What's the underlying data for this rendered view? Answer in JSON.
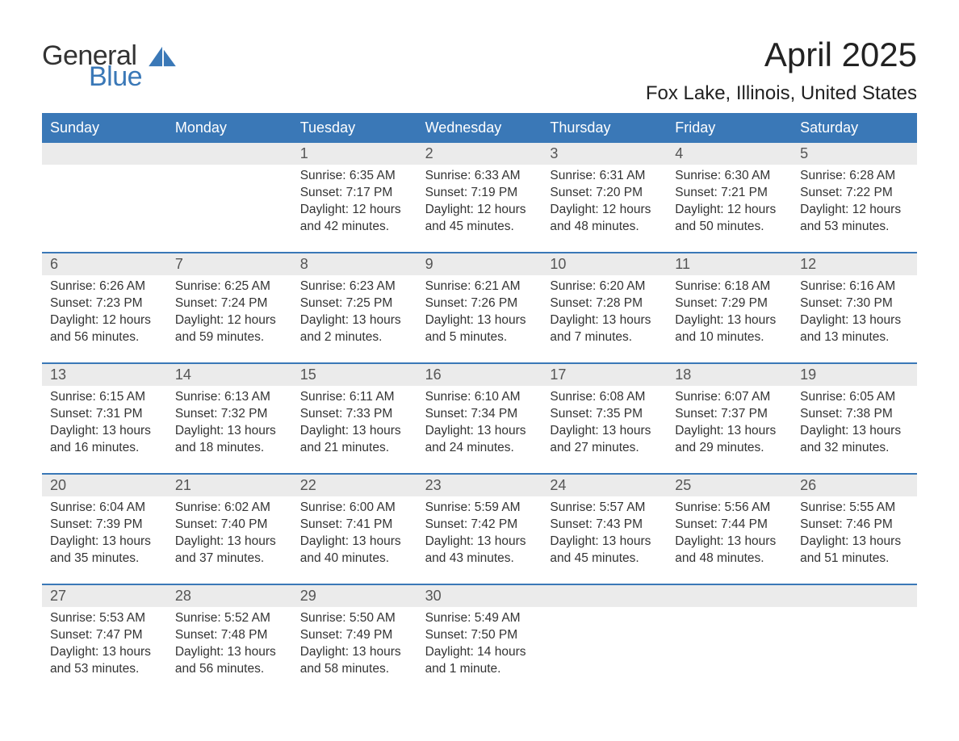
{
  "logo": {
    "general": "General",
    "blue": "Blue",
    "sail_color": "#3a78b7"
  },
  "title": "April 2025",
  "location": "Fox Lake, Illinois, United States",
  "colors": {
    "header_bg": "#3a78b7",
    "header_text": "#ffffff",
    "daynum_bg": "#ebebeb",
    "text": "#333333",
    "week_border": "#3a78b7",
    "background": "#ffffff"
  },
  "typography": {
    "title_fontsize": 42,
    "location_fontsize": 24,
    "dow_fontsize": 18,
    "daynum_fontsize": 18,
    "cell_fontsize": 15.5
  },
  "days_of_week": [
    "Sunday",
    "Monday",
    "Tuesday",
    "Wednesday",
    "Thursday",
    "Friday",
    "Saturday"
  ],
  "weeks": [
    [
      null,
      null,
      {
        "n": "1",
        "sunrise": "Sunrise: 6:35 AM",
        "sunset": "Sunset: 7:17 PM",
        "d1": "Daylight: 12 hours",
        "d2": "and 42 minutes."
      },
      {
        "n": "2",
        "sunrise": "Sunrise: 6:33 AM",
        "sunset": "Sunset: 7:19 PM",
        "d1": "Daylight: 12 hours",
        "d2": "and 45 minutes."
      },
      {
        "n": "3",
        "sunrise": "Sunrise: 6:31 AM",
        "sunset": "Sunset: 7:20 PM",
        "d1": "Daylight: 12 hours",
        "d2": "and 48 minutes."
      },
      {
        "n": "4",
        "sunrise": "Sunrise: 6:30 AM",
        "sunset": "Sunset: 7:21 PM",
        "d1": "Daylight: 12 hours",
        "d2": "and 50 minutes."
      },
      {
        "n": "5",
        "sunrise": "Sunrise: 6:28 AM",
        "sunset": "Sunset: 7:22 PM",
        "d1": "Daylight: 12 hours",
        "d2": "and 53 minutes."
      }
    ],
    [
      {
        "n": "6",
        "sunrise": "Sunrise: 6:26 AM",
        "sunset": "Sunset: 7:23 PM",
        "d1": "Daylight: 12 hours",
        "d2": "and 56 minutes."
      },
      {
        "n": "7",
        "sunrise": "Sunrise: 6:25 AM",
        "sunset": "Sunset: 7:24 PM",
        "d1": "Daylight: 12 hours",
        "d2": "and 59 minutes."
      },
      {
        "n": "8",
        "sunrise": "Sunrise: 6:23 AM",
        "sunset": "Sunset: 7:25 PM",
        "d1": "Daylight: 13 hours",
        "d2": "and 2 minutes."
      },
      {
        "n": "9",
        "sunrise": "Sunrise: 6:21 AM",
        "sunset": "Sunset: 7:26 PM",
        "d1": "Daylight: 13 hours",
        "d2": "and 5 minutes."
      },
      {
        "n": "10",
        "sunrise": "Sunrise: 6:20 AM",
        "sunset": "Sunset: 7:28 PM",
        "d1": "Daylight: 13 hours",
        "d2": "and 7 minutes."
      },
      {
        "n": "11",
        "sunrise": "Sunrise: 6:18 AM",
        "sunset": "Sunset: 7:29 PM",
        "d1": "Daylight: 13 hours",
        "d2": "and 10 minutes."
      },
      {
        "n": "12",
        "sunrise": "Sunrise: 6:16 AM",
        "sunset": "Sunset: 7:30 PM",
        "d1": "Daylight: 13 hours",
        "d2": "and 13 minutes."
      }
    ],
    [
      {
        "n": "13",
        "sunrise": "Sunrise: 6:15 AM",
        "sunset": "Sunset: 7:31 PM",
        "d1": "Daylight: 13 hours",
        "d2": "and 16 minutes."
      },
      {
        "n": "14",
        "sunrise": "Sunrise: 6:13 AM",
        "sunset": "Sunset: 7:32 PM",
        "d1": "Daylight: 13 hours",
        "d2": "and 18 minutes."
      },
      {
        "n": "15",
        "sunrise": "Sunrise: 6:11 AM",
        "sunset": "Sunset: 7:33 PM",
        "d1": "Daylight: 13 hours",
        "d2": "and 21 minutes."
      },
      {
        "n": "16",
        "sunrise": "Sunrise: 6:10 AM",
        "sunset": "Sunset: 7:34 PM",
        "d1": "Daylight: 13 hours",
        "d2": "and 24 minutes."
      },
      {
        "n": "17",
        "sunrise": "Sunrise: 6:08 AM",
        "sunset": "Sunset: 7:35 PM",
        "d1": "Daylight: 13 hours",
        "d2": "and 27 minutes."
      },
      {
        "n": "18",
        "sunrise": "Sunrise: 6:07 AM",
        "sunset": "Sunset: 7:37 PM",
        "d1": "Daylight: 13 hours",
        "d2": "and 29 minutes."
      },
      {
        "n": "19",
        "sunrise": "Sunrise: 6:05 AM",
        "sunset": "Sunset: 7:38 PM",
        "d1": "Daylight: 13 hours",
        "d2": "and 32 minutes."
      }
    ],
    [
      {
        "n": "20",
        "sunrise": "Sunrise: 6:04 AM",
        "sunset": "Sunset: 7:39 PM",
        "d1": "Daylight: 13 hours",
        "d2": "and 35 minutes."
      },
      {
        "n": "21",
        "sunrise": "Sunrise: 6:02 AM",
        "sunset": "Sunset: 7:40 PM",
        "d1": "Daylight: 13 hours",
        "d2": "and 37 minutes."
      },
      {
        "n": "22",
        "sunrise": "Sunrise: 6:00 AM",
        "sunset": "Sunset: 7:41 PM",
        "d1": "Daylight: 13 hours",
        "d2": "and 40 minutes."
      },
      {
        "n": "23",
        "sunrise": "Sunrise: 5:59 AM",
        "sunset": "Sunset: 7:42 PM",
        "d1": "Daylight: 13 hours",
        "d2": "and 43 minutes."
      },
      {
        "n": "24",
        "sunrise": "Sunrise: 5:57 AM",
        "sunset": "Sunset: 7:43 PM",
        "d1": "Daylight: 13 hours",
        "d2": "and 45 minutes."
      },
      {
        "n": "25",
        "sunrise": "Sunrise: 5:56 AM",
        "sunset": "Sunset: 7:44 PM",
        "d1": "Daylight: 13 hours",
        "d2": "and 48 minutes."
      },
      {
        "n": "26",
        "sunrise": "Sunrise: 5:55 AM",
        "sunset": "Sunset: 7:46 PM",
        "d1": "Daylight: 13 hours",
        "d2": "and 51 minutes."
      }
    ],
    [
      {
        "n": "27",
        "sunrise": "Sunrise: 5:53 AM",
        "sunset": "Sunset: 7:47 PM",
        "d1": "Daylight: 13 hours",
        "d2": "and 53 minutes."
      },
      {
        "n": "28",
        "sunrise": "Sunrise: 5:52 AM",
        "sunset": "Sunset: 7:48 PM",
        "d1": "Daylight: 13 hours",
        "d2": "and 56 minutes."
      },
      {
        "n": "29",
        "sunrise": "Sunrise: 5:50 AM",
        "sunset": "Sunset: 7:49 PM",
        "d1": "Daylight: 13 hours",
        "d2": "and 58 minutes."
      },
      {
        "n": "30",
        "sunrise": "Sunrise: 5:49 AM",
        "sunset": "Sunset: 7:50 PM",
        "d1": "Daylight: 14 hours",
        "d2": "and 1 minute."
      },
      null,
      null,
      null
    ]
  ]
}
